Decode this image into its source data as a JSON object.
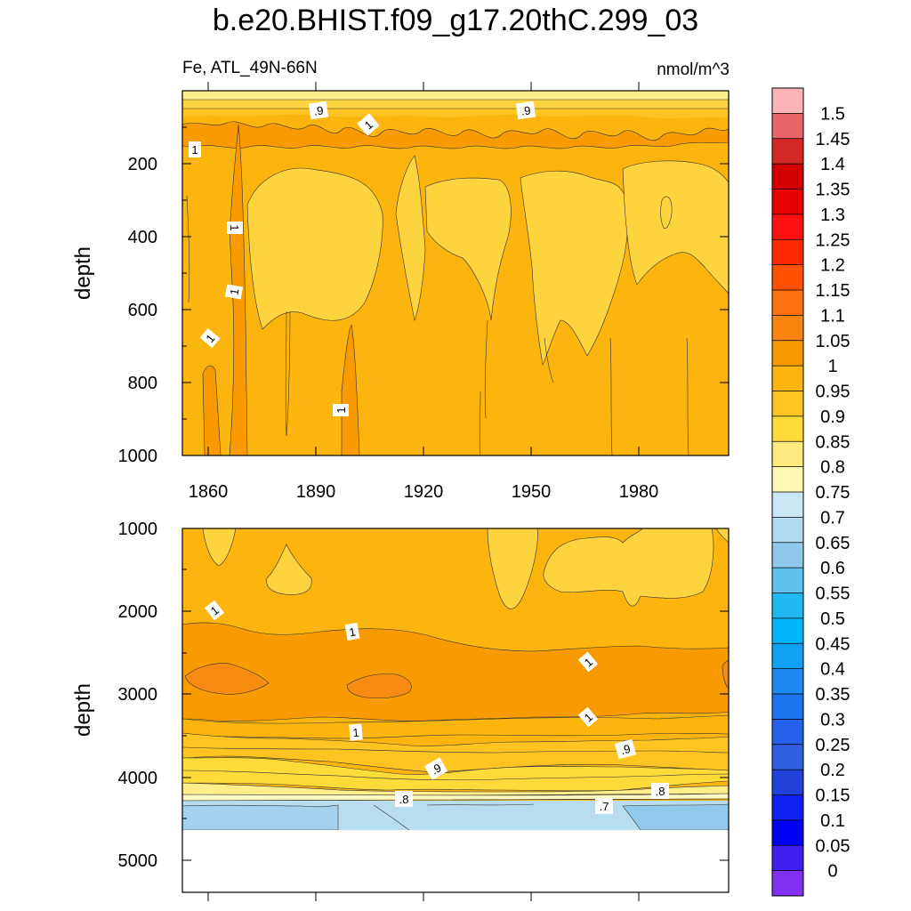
{
  "title": "b.e20.BHIST.f09_g17.20thC.299_03",
  "variable_label": "Fe, ATL_49N-66N",
  "units": "nmol/m^3",
  "colors": {
    "bg_orange": "#FBB50E",
    "light_yellow": "#FDD43E",
    "deep_orange": "#F99A00",
    "darker_orange": "#F78A10",
    "pale_yellow": "#FFF08A",
    "light_blue": "#B9DDF0",
    "mid_blue": "#93C9EA",
    "line": "#333333"
  },
  "chart_data": [
    {
      "type": "heatmap",
      "panel": "upper",
      "ylabel": "depth",
      "xlabel": "",
      "x_ticks": [
        "1860",
        "1890",
        "1920",
        "1950",
        "1980"
      ],
      "xlim": [
        1850,
        2005
      ],
      "ylim": [
        1000,
        0
      ],
      "y_ticks": [
        "200",
        "400",
        "600",
        "800",
        "1000"
      ],
      "contour_labels": [
        ".9",
        "1",
        ".9",
        "1",
        "1",
        "1",
        "1",
        "1"
      ]
    },
    {
      "type": "heatmap",
      "panel": "lower",
      "ylabel": "depth",
      "xlabel": "",
      "xlim": [
        1850,
        2005
      ],
      "ylim": [
        5400,
        1000
      ],
      "y_ticks": [
        "1000",
        "2000",
        "3000",
        "4000",
        "5000"
      ],
      "contour_labels": [
        "1",
        "1",
        "1",
        "1",
        "1",
        ".9",
        ".9",
        ".8",
        ".7",
        ".8"
      ]
    },
    {
      "type": "colorbar",
      "levels": [
        "1.5",
        "1.45",
        "1.4",
        "1.35",
        "1.3",
        "1.25",
        "1.2",
        "1.15",
        "1.1",
        "1.05",
        "1",
        "0.95",
        "0.9",
        "0.85",
        "0.8",
        "0.75",
        "0.7",
        "0.65",
        "0.6",
        "0.55",
        "0.5",
        "0.45",
        "0.4",
        "0.35",
        "0.3",
        "0.25",
        "0.2",
        "0.15",
        "0.1",
        "0.05",
        "0"
      ],
      "colors": [
        "#FFB4B8",
        "#E96468",
        "#D42828",
        "#D40000",
        "#E80000",
        "#FF1010",
        "#FF2A00",
        "#FF5000",
        "#FF7010",
        "#F98410",
        "#F99A00",
        "#FBB50E",
        "#FDC422",
        "#FDDC3A",
        "#FFEA80",
        "#FFF8B0",
        "#C8E6F4",
        "#B0DAF0",
        "#90C8EC",
        "#60C0EE",
        "#20B8F0",
        "#00B4F8",
        "#10A0F4",
        "#1C88F0",
        "#1E74EC",
        "#2460E8",
        "#3060E0",
        "#2040D8",
        "#1020F0",
        "#0000F4",
        "#4020F0",
        "#8030F0"
      ]
    }
  ]
}
